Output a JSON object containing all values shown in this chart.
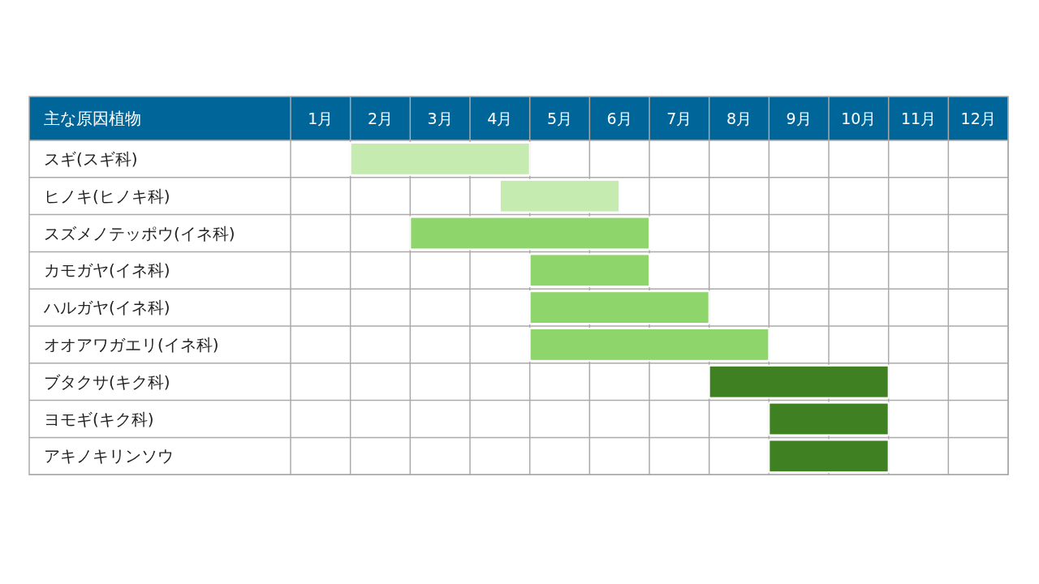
{
  "chart_data": {
    "type": "bar",
    "orientation": "horizontal",
    "ylabel": "主な原因植物",
    "categories": [
      "スギ(スギ科)",
      "ヒノキ(ヒノキ科)",
      "スズメノテッポウ(イネ科)",
      "カモガヤ(イネ科)",
      "ハルガヤ(イネ科)",
      "オオアワガエリ(イネ科)",
      "ブタクサ(キク科)",
      "ヨモギ(キク科)",
      "アキノキリンソウ"
    ],
    "base": [
      1,
      3.5,
      2,
      4,
      4,
      4,
      7,
      8,
      8
    ],
    "values": [
      3,
      2,
      4,
      2,
      3,
      4,
      3,
      2,
      2
    ],
    "colors": [
      "#c6ebb0",
      "#c6ebb0",
      "#8ed66b",
      "#8ed66b",
      "#8ed66b",
      "#8ed66b",
      "#3f8022",
      "#3f8022",
      "#3f8022"
    ],
    "xlim": [
      0,
      12
    ],
    "xticks": [
      {
        "value": 0,
        "label": null
      },
      {
        "value": 0.5,
        "label": "1月"
      },
      {
        "value": 1,
        "label": null
      },
      {
        "value": 1.5,
        "label": "2月"
      },
      {
        "value": 2,
        "label": null
      },
      {
        "value": 2.5,
        "label": "3月"
      },
      {
        "value": 3,
        "label": null
      },
      {
        "value": 3.5,
        "label": "4月"
      },
      {
        "value": 4,
        "label": null
      },
      {
        "value": 4.5,
        "label": "5月"
      },
      {
        "value": 5,
        "label": null
      },
      {
        "value": 5.5,
        "label": "6月"
      },
      {
        "value": 6,
        "label": null
      },
      {
        "value": 6.5,
        "label": "7月"
      },
      {
        "value": 7,
        "label": null
      },
      {
        "value": 7.5,
        "label": "8月"
      },
      {
        "value": 8,
        "label": null
      },
      {
        "value": 8.5,
        "label": "9月"
      },
      {
        "value": 9,
        "label": null
      },
      {
        "value": 9.5,
        "label": "10月"
      },
      {
        "value": 10,
        "label": null
      },
      {
        "value": 10.5,
        "label": "11月"
      },
      {
        "value": 11,
        "label": null
      },
      {
        "value": 11.5,
        "label": "12月"
      },
      {
        "value": 12,
        "label": null
      }
    ],
    "grid": true
  }
}
